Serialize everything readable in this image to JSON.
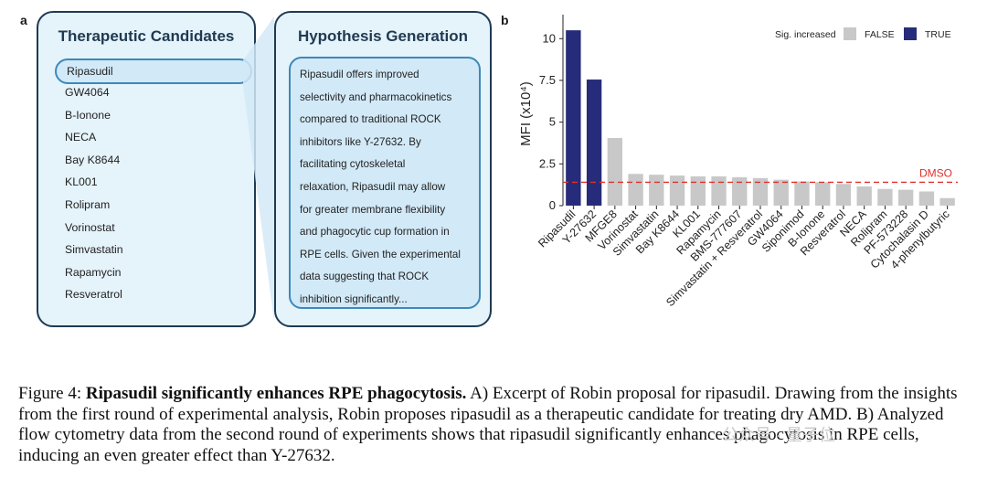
{
  "panel_a": {
    "letter": "a",
    "candidates_title": "Therapeutic Candidates",
    "candidates": [
      "Ripasudil",
      "GW4064",
      "B-Ionone",
      "NECA",
      "Bay K8644",
      "KL001",
      "Rolipram",
      "Vorinostat",
      "Simvastatin",
      "Rapamycin",
      "Resveratrol"
    ],
    "hypothesis_title": "Hypothesis Generation",
    "hypothesis_lines": [
      "Ripasudil offers improved",
      "selectivity and pharmacokinetics",
      "compared to traditional ROCK",
      "inhibitors like Y-27632. By",
      "facilitating cytoskeletal",
      "relaxation, Ripasudil may allow",
      "for greater membrane flexibility",
      "and phagocytic cup formation in",
      "RPE cells. Given the experimental",
      "data suggesting that ROCK",
      "inhibition significantly..."
    ]
  },
  "panel_b": {
    "letter": "b"
  },
  "chart_data": {
    "type": "bar",
    "ylabel": "MFI (x10⁴)",
    "ylim": [
      0,
      11
    ],
    "yticks": [
      0,
      2.5,
      5,
      7.5,
      10
    ],
    "categories": [
      "Ripasudil",
      "Y-27632",
      "MFGE8",
      "Vorinostat",
      "Simvastatin",
      "Bay K8644",
      "KL001",
      "Rapamycin",
      "BMS-777607",
      "Simvastatin + Resveratrol",
      "GW4064",
      "Siponimod",
      "B-Ionone",
      "Resveratrol",
      "NECA",
      "Rolipram",
      "PF-573228",
      "Cytochalasin D",
      "4-phenylbutyric"
    ],
    "values": [
      10.5,
      7.55,
      4.05,
      1.9,
      1.85,
      1.8,
      1.75,
      1.75,
      1.7,
      1.65,
      1.55,
      1.45,
      1.4,
      1.3,
      1.15,
      1.0,
      0.95,
      0.85,
      0.45
    ],
    "significant": [
      true,
      true,
      false,
      false,
      false,
      false,
      false,
      false,
      false,
      false,
      false,
      false,
      false,
      false,
      false,
      false,
      false,
      false,
      false
    ],
    "legend": {
      "title": "Sig. increased",
      "entries": [
        {
          "label": "FALSE",
          "color": "#c8c8c8"
        },
        {
          "label": "TRUE",
          "color": "#262c7a"
        }
      ],
      "placement": "top-right"
    },
    "reference_line": {
      "label": "DMSO",
      "value": 1.4,
      "color": "#e0302a"
    }
  },
  "caption": {
    "prefix": "Figure 4: ",
    "bold": "Ripasudil significantly enhances RPE phagocytosis.",
    "body": " A) Excerpt of Robin proposal for ripasudil. Drawing from the insights from the first round of experimental analysis, Robin proposes ripasudil as a therapeutic candidate for treating dry AMD. B) Analyzed flow cytometry data from the second round of experiments shows that ripasudil significantly enhances phagocytosis in RPE cells, inducing an even greater effect than Y-27632."
  },
  "watermark": "公众号 · 量子位"
}
